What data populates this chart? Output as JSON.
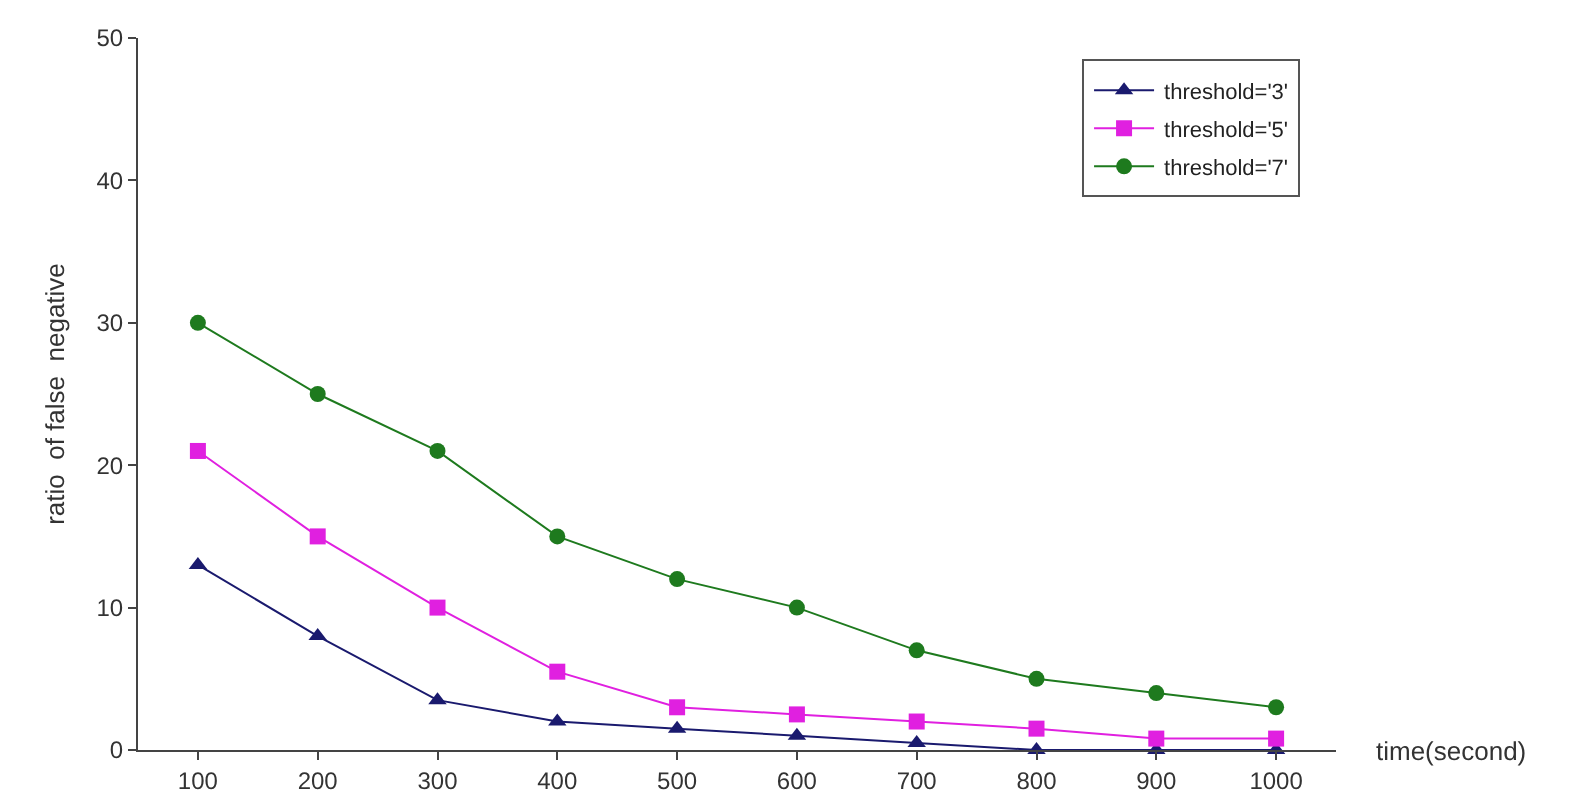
{
  "chart_data": {
    "type": "line",
    "xlabel": "time(second)",
    "ylabel": "ratio  of false  negative",
    "categories": [
      "100",
      "200",
      "300",
      "400",
      "500",
      "600",
      "700",
      "800",
      "900",
      "1000"
    ],
    "ylim": [
      0,
      50
    ],
    "yticks": [
      0,
      10,
      20,
      30,
      40,
      50
    ],
    "grid": false,
    "legend": "top right",
    "series": [
      {
        "name": "threshold='3'",
        "color": "#1a1a6e",
        "marker": "triangle",
        "values": [
          13,
          8,
          3.5,
          2,
          1.5,
          1,
          0.5,
          0,
          0,
          0
        ]
      },
      {
        "name": "threshold='5'",
        "color": "#e020e0",
        "marker": "square",
        "values": [
          21,
          15,
          10,
          5.5,
          3,
          2.5,
          2,
          1.5,
          0.8,
          0.8
        ]
      },
      {
        "name": "threshold='7'",
        "color": "#1e7a1e",
        "marker": "circle",
        "values": [
          30,
          25,
          21,
          15,
          12,
          10,
          7,
          5,
          4,
          3
        ]
      }
    ]
  }
}
